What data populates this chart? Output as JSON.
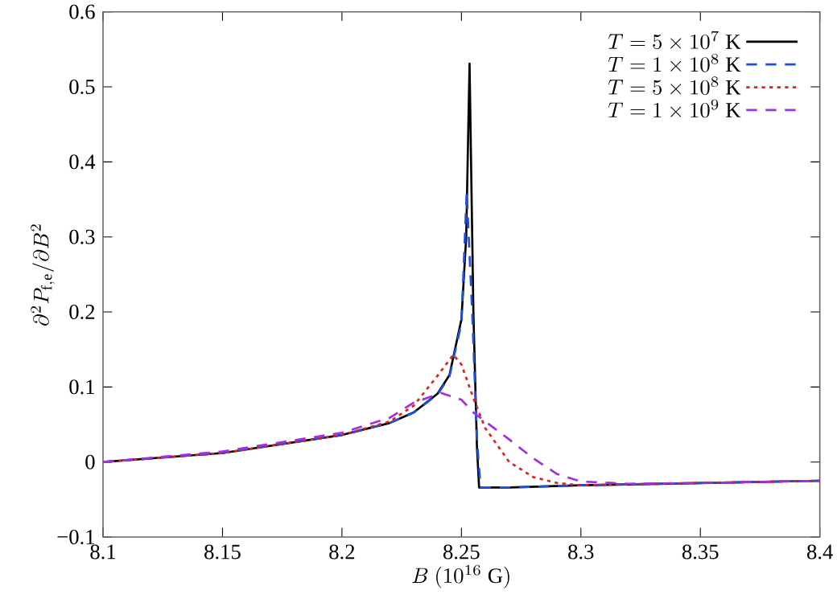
{
  "chart_data": {
    "type": "line",
    "xlabel": "B\\ (10^{16}\\ \\mathrm{G})",
    "ylabel": "\\partial^2 P_{\\mathrm{f,e}}/\\partial B^2",
    "xlim": [
      8.1,
      8.4
    ],
    "ylim": [
      -0.1,
      0.6
    ],
    "xticks": [
      8.1,
      8.15,
      8.2,
      8.25,
      8.3,
      8.35,
      8.4
    ],
    "yticks": [
      {
        "value": -0.1,
        "label": "−0.1"
      },
      0,
      0.1,
      0.2,
      0.3,
      0.4,
      0.5,
      0.6
    ],
    "grid": false,
    "legend": "top right",
    "series": [
      {
        "name": "T = 5\\times 10^{7}\\ \\mathrm{K}",
        "color": "#000000",
        "line_style": "solid",
        "x": [
          8.1,
          8.15,
          8.2,
          8.22,
          8.23,
          8.24,
          8.245,
          8.25,
          8.252,
          8.2534,
          8.255,
          8.2565,
          8.2574,
          8.27,
          8.3,
          8.35,
          8.4
        ],
        "values": [
          0,
          0.012,
          0.036,
          0.052,
          0.066,
          0.091,
          0.116,
          0.19,
          0.3,
          0.531,
          0.2,
          0.02,
          -0.034,
          -0.034,
          -0.031,
          -0.028,
          -0.025
        ]
      },
      {
        "name": "T = 1\\times 10^{8}\\ \\mathrm{K}",
        "color": "#1f4fe0",
        "line_style": "dashed",
        "x": [
          8.1,
          8.15,
          8.2,
          8.22,
          8.23,
          8.24,
          8.245,
          8.25,
          8.2522,
          8.2545,
          8.2565,
          8.258,
          8.27,
          8.3,
          8.35,
          8.4
        ],
        "values": [
          0,
          0.012,
          0.036,
          0.052,
          0.066,
          0.09,
          0.114,
          0.185,
          0.36,
          0.2,
          0.03,
          -0.034,
          -0.034,
          -0.031,
          -0.028,
          -0.025
        ]
      },
      {
        "name": "T = 5\\times 10^{8}\\ \\mathrm{K}",
        "color": "#e02020",
        "line_style": "dotted",
        "x": [
          8.1,
          8.15,
          8.2,
          8.22,
          8.23,
          8.24,
          8.2466,
          8.25,
          8.255,
          8.26,
          8.27,
          8.28,
          8.29,
          8.3,
          8.35,
          8.4
        ],
        "values": [
          0,
          0.012,
          0.036,
          0.054,
          0.075,
          0.115,
          0.143,
          0.13,
          0.085,
          0.045,
          0.0,
          -0.02,
          -0.028,
          -0.031,
          -0.028,
          -0.025
        ]
      },
      {
        "name": "T = 1\\times 10^{9}\\ \\mathrm{K}",
        "color": "#a030e0",
        "line_style": "dashed",
        "x": [
          8.1,
          8.15,
          8.2,
          8.22,
          8.23,
          8.2415,
          8.25,
          8.255,
          8.27,
          8.28,
          8.29,
          8.3,
          8.32,
          8.35,
          8.4
        ],
        "values": [
          0,
          0.014,
          0.039,
          0.059,
          0.079,
          0.092,
          0.083,
          0.066,
          0.03,
          0.005,
          -0.016,
          -0.026,
          -0.029,
          -0.028,
          -0.025
        ]
      }
    ]
  }
}
